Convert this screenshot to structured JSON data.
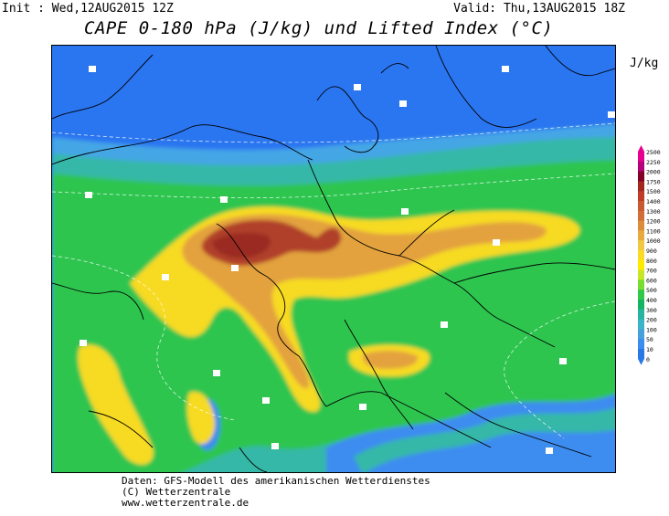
{
  "header": {
    "init": "Init : Wed,12AUG2015 12Z",
    "valid": "Valid: Thu,13AUG2015 18Z",
    "title": "CAPE 0-180 hPa (J/kg) und Lifted Index (°C)"
  },
  "unit_label": "J/kg",
  "legend": {
    "title": "J/kg",
    "levels": [
      "2500",
      "2250",
      "2000",
      "1750",
      "1500",
      "1400",
      "1300",
      "1200",
      "1100",
      "1000",
      "900",
      "800",
      "700",
      "600",
      "500",
      "400",
      "300",
      "200",
      "100",
      "50",
      "10",
      "0"
    ],
    "colors": [
      "#e60090",
      "#b4007a",
      "#820028",
      "#a0281e",
      "#be3c28",
      "#c85a32",
      "#d26e37",
      "#dc8c3c",
      "#e6aa41",
      "#f0c846",
      "#fadc28",
      "#ffeb00",
      "#c8e628",
      "#78dc32",
      "#32c84b",
      "#14b464",
      "#28b4a0",
      "#3cb4c8",
      "#46a0dc",
      "#3c8cf0",
      "#2878e6"
    ]
  },
  "colors": {
    "ocean_blue": "#2b75f0",
    "light_blue": "#45a6e6",
    "teal": "#35b8a8",
    "green": "#2fc54f",
    "yellow": "#f7da23",
    "orange": "#e3a23e",
    "brown": "#b0402a"
  },
  "footer": {
    "line1": "Daten: GFS-Modell des amerikanischen Wetterdienstes",
    "line2": "(C) Wetterzentrale",
    "line3": "www.wetterzentrale.de"
  }
}
